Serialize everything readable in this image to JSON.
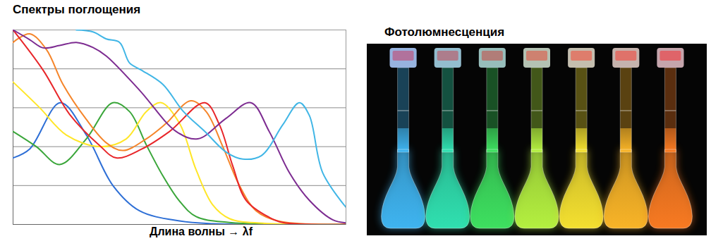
{
  "chart_data": {
    "type": "line",
    "title": "Спектры поглощения",
    "x_label": "Длина волны → λf",
    "xlim": [
      0,
      100
    ],
    "ylim": [
      0,
      5
    ],
    "yticks": [
      0,
      1,
      2,
      3,
      4,
      5
    ],
    "grid": true,
    "tick_labels": false,
    "series": [
      {
        "color": "#2e6fd6",
        "x": [
          0,
          5,
          14.2,
          22,
          30,
          38,
          50,
          60,
          100
        ],
        "values": [
          1.71,
          1.94,
          3.13,
          2.3,
          1.0,
          0.35,
          0.09,
          0.02,
          0
        ]
      },
      {
        "color": "#3aa63a",
        "x": [
          0,
          7,
          14,
          22,
          30,
          35,
          40,
          45,
          50,
          55,
          65,
          100
        ],
        "values": [
          2.39,
          2.0,
          1.54,
          2.2,
          3.13,
          2.9,
          2.05,
          1.25,
          0.6,
          0.2,
          0.05,
          0
        ]
      },
      {
        "color": "#ffe628",
        "x": [
          0,
          8,
          16,
          26,
          34,
          40,
          44.5,
          50,
          55,
          60,
          65,
          75,
          100
        ],
        "values": [
          3.66,
          3.0,
          2.3,
          2.0,
          2.2,
          2.9,
          3.13,
          2.6,
          1.4,
          0.5,
          0.15,
          0.03,
          0
        ]
      },
      {
        "color": "#f5852a",
        "x": [
          0,
          5,
          10,
          15,
          22,
          28,
          33,
          40,
          46,
          53.4,
          58,
          63,
          68,
          73,
          80,
          100
        ],
        "values": [
          4.68,
          4.9,
          4.5,
          3.6,
          2.7,
          2.1,
          1.9,
          2.2,
          2.6,
          3.18,
          2.9,
          2.0,
          1.0,
          0.35,
          0.08,
          0
        ]
      },
      {
        "color": "#e8262a",
        "x": [
          0,
          9,
          17,
          26,
          31,
          38.7,
          47,
          57.6,
          62,
          66,
          70,
          77,
          81,
          100
        ],
        "values": [
          5.0,
          3.97,
          2.83,
          2.03,
          1.71,
          1.94,
          2.39,
          3.13,
          2.56,
          1.5,
          0.62,
          0.18,
          0.05,
          0
        ]
      },
      {
        "color": "#7d2c91",
        "x": [
          0,
          5,
          9,
          14,
          19,
          24,
          28,
          38,
          49,
          55.5,
          64,
          71.4,
          77,
          83,
          89,
          96,
          100
        ],
        "values": [
          5.0,
          4.75,
          4.54,
          4.6,
          4.68,
          4.55,
          4.33,
          3.45,
          2.39,
          2.2,
          2.73,
          3.13,
          2.38,
          1.33,
          0.62,
          0.12,
          0.04
        ]
      },
      {
        "color": "#41b6e6",
        "x": [
          19,
          24,
          28,
          32,
          35,
          38.5,
          45,
          51,
          57.6,
          64,
          69,
          74.6,
          81,
          86,
          89,
          93,
          100
        ],
        "values": [
          5.0,
          4.95,
          4.77,
          4.68,
          4.15,
          3.97,
          3.6,
          2.92,
          2.39,
          1.86,
          1.68,
          1.77,
          2.56,
          3.13,
          2.8,
          1.33,
          0.44
        ]
      }
    ]
  },
  "photo": {
    "title": "Фотолюмнесценция",
    "colors": [
      "#3fb4f0",
      "#30e0b0",
      "#3ee060",
      "#b4f040",
      "#f4e030",
      "#f8b428",
      "#f87a22"
    ]
  }
}
